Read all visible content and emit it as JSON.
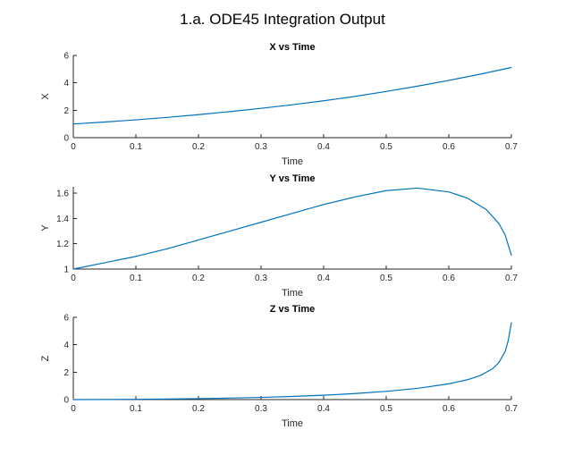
{
  "figure": {
    "title": "1.a. ODE45 Integration Output"
  },
  "colors": {
    "series": "#0072BD",
    "axis": "#262626"
  },
  "chart_data": [
    {
      "type": "line",
      "title": "X vs Time",
      "xlabel": "Time",
      "ylabel": "X",
      "xlim": [
        0,
        0.7
      ],
      "ylim": [
        0,
        6
      ],
      "xticks": [
        0,
        0.1,
        0.2,
        0.3,
        0.4,
        0.5,
        0.6,
        0.7
      ],
      "xtick_labels": [
        "0",
        "0.1",
        "0.2",
        "0.3",
        "0.4",
        "0.5",
        "0.6",
        "0.7"
      ],
      "yticks": [
        0,
        2,
        4,
        6
      ],
      "ytick_labels": [
        "0",
        "2",
        "4",
        "6"
      ],
      "grid": false,
      "series": [
        {
          "x": [
            0,
            0.05,
            0.1,
            0.15,
            0.2,
            0.25,
            0.3,
            0.35,
            0.4,
            0.45,
            0.5,
            0.55,
            0.6,
            0.65,
            0.7
          ],
          "y": [
            1.0,
            1.14,
            1.3,
            1.48,
            1.68,
            1.9,
            2.14,
            2.4,
            2.69,
            3.01,
            3.37,
            3.76,
            4.18,
            4.63,
            5.12
          ]
        }
      ]
    },
    {
      "type": "line",
      "title": "Y vs Time",
      "xlabel": "Time",
      "ylabel": "Y",
      "xlim": [
        0,
        0.7
      ],
      "ylim": [
        1,
        1.65
      ],
      "xticks": [
        0,
        0.1,
        0.2,
        0.3,
        0.4,
        0.5,
        0.6,
        0.7
      ],
      "xtick_labels": [
        "0",
        "0.1",
        "0.2",
        "0.3",
        "0.4",
        "0.5",
        "0.6",
        "0.7"
      ],
      "yticks": [
        1,
        1.2,
        1.4,
        1.6
      ],
      "ytick_labels": [
        "1",
        "1.2",
        "1.4",
        "1.6"
      ],
      "grid": false,
      "series": [
        {
          "x": [
            0,
            0.05,
            0.1,
            0.15,
            0.2,
            0.25,
            0.3,
            0.35,
            0.4,
            0.45,
            0.5,
            0.55,
            0.6,
            0.63,
            0.66,
            0.68,
            0.69,
            0.7
          ],
          "y": [
            1.0,
            1.05,
            1.1,
            1.16,
            1.23,
            1.3,
            1.37,
            1.44,
            1.51,
            1.57,
            1.62,
            1.64,
            1.61,
            1.56,
            1.47,
            1.36,
            1.27,
            1.11
          ]
        }
      ]
    },
    {
      "type": "line",
      "title": "Z vs Time",
      "xlabel": "Time",
      "ylabel": "Z",
      "xlim": [
        0,
        0.7
      ],
      "ylim": [
        0,
        6
      ],
      "xticks": [
        0,
        0.1,
        0.2,
        0.3,
        0.4,
        0.5,
        0.6,
        0.7
      ],
      "xtick_labels": [
        "0",
        "0.1",
        "0.2",
        "0.3",
        "0.4",
        "0.5",
        "0.6",
        "0.7"
      ],
      "yticks": [
        0,
        2,
        4,
        6
      ],
      "ytick_labels": [
        "0",
        "2",
        "4",
        "6"
      ],
      "grid": false,
      "series": [
        {
          "x": [
            0,
            0.05,
            0.1,
            0.15,
            0.2,
            0.25,
            0.3,
            0.35,
            0.4,
            0.45,
            0.5,
            0.55,
            0.6,
            0.63,
            0.65,
            0.67,
            0.68,
            0.69,
            0.695,
            0.7
          ],
          "y": [
            0.0,
            0.01,
            0.02,
            0.04,
            0.07,
            0.11,
            0.16,
            0.23,
            0.32,
            0.44,
            0.6,
            0.82,
            1.15,
            1.45,
            1.75,
            2.25,
            2.7,
            3.5,
            4.3,
            5.6
          ]
        }
      ]
    }
  ]
}
